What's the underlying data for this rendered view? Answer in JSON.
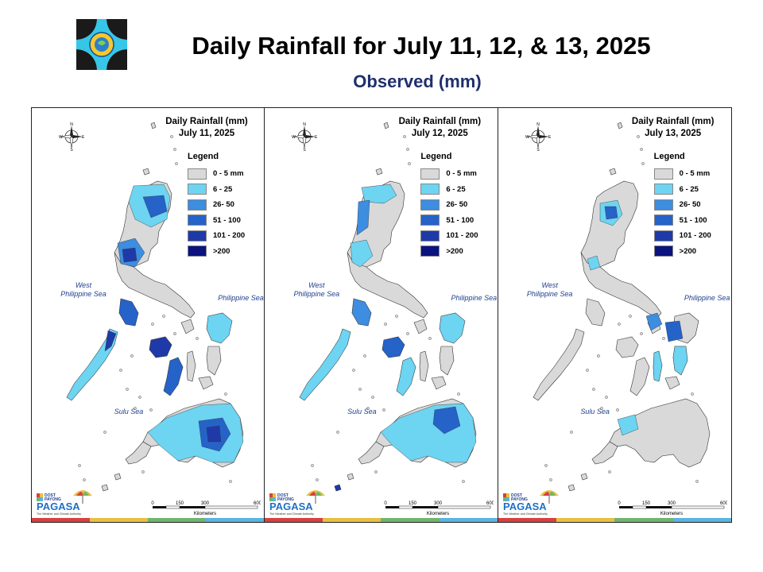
{
  "header": {
    "title": "Daily Rainfall for July 11, 12, & 13, 2025",
    "subtitle": "Observed (mm)"
  },
  "legend": {
    "title": "Legend",
    "items": [
      {
        "label": "0 - 5 mm",
        "color": "#d9d9d9"
      },
      {
        "label": "6 - 25",
        "color": "#6dd4f2"
      },
      {
        "label": "26- 50",
        "color": "#3d8de0"
      },
      {
        "label": "51 - 100",
        "color": "#2563c9"
      },
      {
        "label": "101 - 200",
        "color": "#1f3aa8"
      },
      {
        "label": ">200",
        "color": "#0a137e"
      }
    ]
  },
  "seas": {
    "west": "West\nPhilippine Sea",
    "philippine": "Philippine Sea",
    "sulu": "Sulu Sea"
  },
  "scale": {
    "ticks": [
      "0",
      "150",
      "300",
      "600"
    ],
    "unit": "Kilometers"
  },
  "branding": {
    "dost": "DOST",
    "payong": "PAYONG",
    "pagasa": "PAGASA",
    "tagline": "The Weather and Climate Authority"
  },
  "panels": [
    {
      "title_line1": "Daily Rainfall (mm)",
      "title_line2": "July 11, 2025",
      "rain_level": "high"
    },
    {
      "title_line1": "Daily Rainfall (mm)",
      "title_line2": "July 12, 2025",
      "rain_level": "medium"
    },
    {
      "title_line1": "Daily Rainfall (mm)",
      "title_line2": "July 13, 2025",
      "rain_level": "low"
    }
  ],
  "stripe_colors": [
    "#d94040",
    "#e8c040",
    "#6fb56f",
    "#5ab4e0"
  ]
}
